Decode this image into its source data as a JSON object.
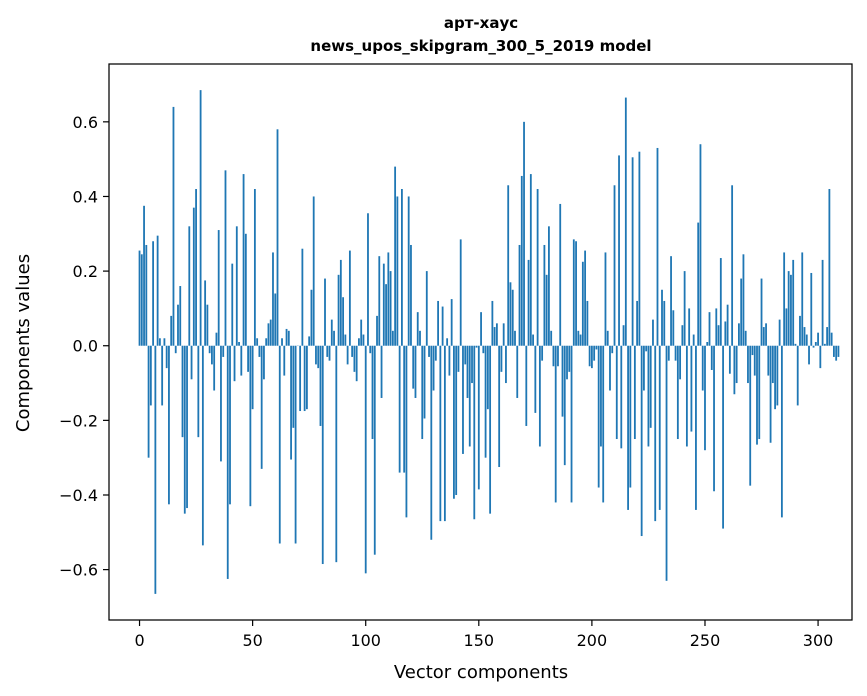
{
  "chart_data": {
    "type": "bar",
    "title": "арт-хаус",
    "subtitle": "news_upos_skipgram_300_5_2019 model",
    "xlabel": "Vector components",
    "ylabel": "Components values",
    "xlim": [
      -13.5,
      315
    ],
    "ylim": [
      -0.735,
      0.755
    ],
    "xticks": [
      0,
      50,
      100,
      150,
      200,
      250,
      300
    ],
    "yticks": [
      -0.6,
      -0.4,
      -0.2,
      0.0,
      0.2,
      0.4,
      0.6
    ],
    "xtick_labels": [
      "0",
      "50",
      "100",
      "150",
      "200",
      "250",
      "300"
    ],
    "ytick_labels": [
      "−0.6",
      "−0.4",
      "−0.2",
      "0.0",
      "0.2",
      "0.4",
      "0.6"
    ],
    "grid": false,
    "bar_color": "#1f77b4",
    "values": [
      0.255,
      0.245,
      0.375,
      0.27,
      -0.3,
      -0.16,
      0.28,
      -0.665,
      0.295,
      0.02,
      -0.16,
      0.02,
      -0.06,
      -0.425,
      0.08,
      0.64,
      -0.02,
      0.11,
      0.16,
      -0.245,
      -0.45,
      -0.435,
      0.32,
      -0.09,
      0.37,
      0.42,
      -0.245,
      0.685,
      -0.535,
      0.175,
      0.11,
      -0.02,
      -0.05,
      -0.12,
      0.035,
      0.31,
      -0.31,
      -0.03,
      0.47,
      -0.625,
      -0.425,
      0.22,
      -0.095,
      0.32,
      0.01,
      -0.08,
      0.46,
      0.3,
      -0.07,
      -0.43,
      -0.17,
      0.42,
      0.02,
      -0.03,
      -0.33,
      -0.09,
      0.02,
      0.06,
      0.07,
      0.25,
      0.14,
      0.58,
      -0.53,
      0.02,
      -0.08,
      0.045,
      0.04,
      -0.305,
      -0.22,
      -0.53,
      0.0,
      -0.175,
      0.26,
      -0.175,
      -0.17,
      0.025,
      0.15,
      0.4,
      -0.05,
      -0.06,
      -0.215,
      -0.585,
      0.18,
      -0.03,
      -0.04,
      0.07,
      0.04,
      -0.58,
      0.19,
      0.23,
      0.13,
      0.03,
      -0.05,
      0.255,
      -0.03,
      -0.07,
      -0.095,
      0.02,
      0.07,
      0.03,
      -0.61,
      0.355,
      -0.02,
      -0.25,
      -0.56,
      0.08,
      0.24,
      -0.14,
      0.22,
      0.165,
      0.25,
      0.2,
      0.04,
      0.48,
      0.4,
      -0.34,
      0.42,
      -0.34,
      -0.46,
      0.4,
      0.27,
      -0.115,
      -0.14,
      0.09,
      0.04,
      -0.25,
      -0.195,
      0.2,
      -0.03,
      -0.52,
      -0.12,
      -0.04,
      0.12,
      -0.47,
      0.105,
      -0.47,
      0.02,
      -0.08,
      0.125,
      -0.41,
      -0.4,
      -0.07,
      0.285,
      -0.29,
      -0.05,
      -0.14,
      -0.27,
      -0.1,
      -0.465,
      -0.005,
      -0.385,
      0.09,
      -0.02,
      -0.3,
      -0.17,
      -0.45,
      0.12,
      0.05,
      0.06,
      -0.325,
      -0.07,
      0.06,
      -0.1,
      0.43,
      0.17,
      0.15,
      0.04,
      -0.14,
      0.27,
      0.455,
      0.6,
      -0.215,
      0.23,
      0.46,
      0.03,
      -0.18,
      0.42,
      -0.27,
      -0.04,
      0.27,
      0.19,
      0.32,
      0.04,
      -0.055,
      -0.42,
      -0.055,
      0.38,
      -0.19,
      -0.32,
      -0.09,
      -0.07,
      -0.42,
      0.285,
      0.28,
      0.04,
      0.03,
      0.225,
      0.255,
      0.12,
      -0.055,
      -0.06,
      -0.04,
      -0.01,
      -0.38,
      -0.27,
      -0.42,
      0.25,
      0.04,
      -0.12,
      -0.02,
      0.43,
      -0.25,
      0.51,
      -0.275,
      0.055,
      0.665,
      -0.44,
      -0.38,
      0.505,
      -0.25,
      0.12,
      0.52,
      -0.51,
      -0.12,
      -0.015,
      -0.27,
      -0.22,
      0.07,
      -0.47,
      0.53,
      -0.44,
      0.15,
      0.12,
      -0.63,
      -0.04,
      0.24,
      0.095,
      -0.04,
      -0.25,
      -0.09,
      0.055,
      0.2,
      -0.27,
      0.1,
      -0.23,
      0.03,
      -0.44,
      0.33,
      0.54,
      -0.12,
      -0.28,
      0.01,
      0.09,
      -0.065,
      -0.39,
      0.1,
      0.055,
      0.235,
      -0.49,
      0.065,
      0.11,
      -0.075,
      0.43,
      -0.13,
      -0.1,
      0.06,
      0.18,
      0.245,
      0.04,
      -0.1,
      -0.375,
      -0.025,
      -0.08,
      -0.265,
      -0.25,
      0.18,
      0.05,
      0.06,
      -0.08,
      -0.26,
      -0.1,
      -0.17,
      -0.16,
      0.07,
      -0.46,
      0.25,
      0.1,
      0.2,
      0.19,
      0.23,
      0.005,
      -0.16,
      0.08,
      0.25,
      0.05,
      0.03,
      -0.05,
      0.195,
      -0.005,
      0.01,
      0.035,
      -0.06,
      0.23,
      0.005,
      0.05,
      0.42,
      0.035,
      -0.03,
      -0.04,
      -0.03
    ]
  }
}
